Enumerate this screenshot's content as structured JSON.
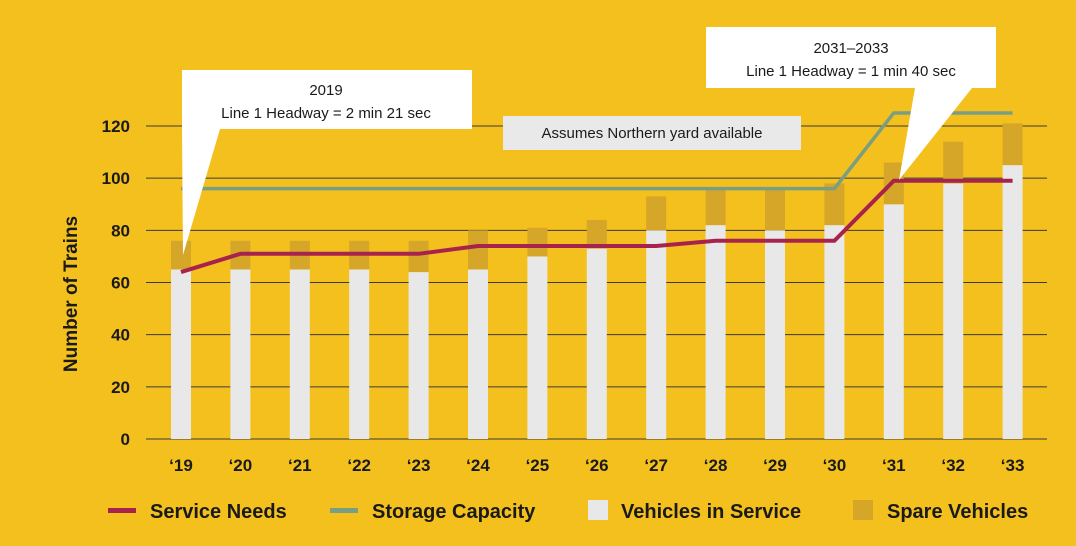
{
  "chart_data": {
    "type": "bar",
    "ylabel": "Number of Trains",
    "ylim": [
      0,
      120
    ],
    "yticks": [
      0,
      20,
      40,
      60,
      80,
      100,
      120
    ],
    "grid": true,
    "categories": [
      "‘19",
      "‘20",
      "‘21",
      "‘22",
      "‘23",
      "‘24",
      "‘25",
      "‘26",
      "‘27",
      "‘28",
      "‘29",
      "‘30",
      "‘31",
      "‘32",
      "‘33"
    ],
    "series": [
      {
        "name": "Vehicles in Service",
        "kind": "stacked-bar",
        "color": "#E8E8E8",
        "values": [
          65,
          65,
          65,
          65,
          64,
          65,
          70,
          73,
          80,
          82,
          80,
          82,
          90,
          98,
          105
        ]
      },
      {
        "name": "Spare Vehicles",
        "kind": "stacked-bar",
        "color": "#D6A628",
        "values": [
          11,
          11,
          11,
          11,
          12,
          15,
          11,
          11,
          13,
          14,
          16,
          16,
          16,
          16,
          16
        ]
      },
      {
        "name": "Service Needs",
        "kind": "line",
        "color": "#A8224E",
        "values": [
          64,
          71,
          71,
          71,
          71,
          74,
          74,
          74,
          74,
          76,
          76,
          76,
          99,
          99,
          99
        ]
      },
      {
        "name": "Storage Capacity",
        "kind": "line",
        "color": "#7A9E82",
        "values": [
          96,
          96,
          96,
          96,
          96,
          96,
          96,
          96,
          96,
          96,
          96,
          96,
          125,
          125,
          125
        ]
      }
    ],
    "annotations": [
      {
        "id": "callout-2019",
        "line1": "2019",
        "line2": "Line 1 Headway = 2 min 21 sec",
        "points_to": "‘19"
      },
      {
        "id": "callout-2031",
        "line1": "2031–2033",
        "line2": "Line 1 Headway = 1 min 40 sec",
        "points_to": "‘31"
      }
    ],
    "note": "Assumes Northern yard available",
    "legend": [
      {
        "label": "Service Needs",
        "kind": "line",
        "color": "#A8224E"
      },
      {
        "label": "Storage Capacity",
        "kind": "line",
        "color": "#7A9E82"
      },
      {
        "label": "Vehicles in Service",
        "kind": "box",
        "color": "#E8E8E8"
      },
      {
        "label": "Spare Vehicles",
        "kind": "box",
        "color": "#D6A628"
      }
    ]
  }
}
